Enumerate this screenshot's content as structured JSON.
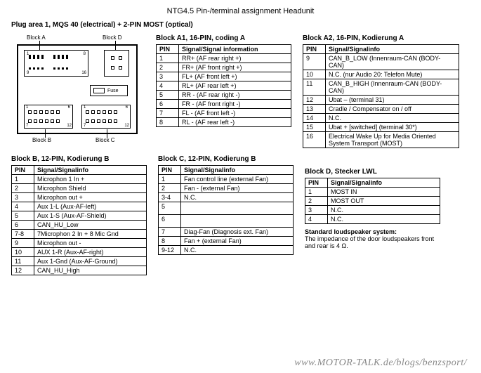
{
  "title": "NTG4.5 Pin-/terminal assignment Headunit",
  "subtitle": "Plug area 1, MQS 40 (electrical) + 2-PIN MOST (optical)",
  "diagram": {
    "labels": {
      "a": "Block A",
      "b": "Block B",
      "c": "Block C",
      "d": "Block D"
    },
    "fuse": "Fuse"
  },
  "blockA1": {
    "title": "Block A1, 16-PIN, coding A",
    "hdr_pin": "PIN",
    "hdr_sig": "Signal/Signal information",
    "rows": [
      {
        "pin": "1",
        "sig": "RR+ (AF rear right +)"
      },
      {
        "pin": "2",
        "sig": "FR+ (AF front right +)"
      },
      {
        "pin": "3",
        "sig": "FL+ (AF front left +)"
      },
      {
        "pin": "4",
        "sig": "RL+ (AF rear left +)"
      },
      {
        "pin": "5",
        "sig": "RR - (AF rear right -)"
      },
      {
        "pin": "6",
        "sig": "FR - (AF front right -)"
      },
      {
        "pin": "7",
        "sig": "FL - (AF front left -)"
      },
      {
        "pin": "8",
        "sig": "RL - (AF rear left -)"
      }
    ]
  },
  "blockA2": {
    "title": "Block A2, 16-PIN, Kodierung A",
    "hdr_pin": "PIN",
    "hdr_sig": "Signal/Signalinfo",
    "rows": [
      {
        "pin": "9",
        "sig": "CAN_B_LOW (Innenraum-CAN (BODY-CAN)"
      },
      {
        "pin": "10",
        "sig": "N.C. (nur Audio 20: Telefon Mute)"
      },
      {
        "pin": "11",
        "sig": "CAN_B_HIGH (Innenraum-CAN (BODY-CAN)"
      },
      {
        "pin": "12",
        "sig": "Ubat – (terminal 31)"
      },
      {
        "pin": "13",
        "sig": "Cradle / Compensator on / off"
      },
      {
        "pin": "14",
        "sig": "N.C."
      },
      {
        "pin": "15",
        "sig": "Ubat + [switched] (terminal 30*)"
      },
      {
        "pin": "16",
        "sig": "Electrical Wake Up for Media Oriented System Transport (MOST)"
      }
    ]
  },
  "blockB": {
    "title": "Block B, 12-PIN, Kodierung B",
    "hdr_pin": "PIN",
    "hdr_sig": "Signal/Signalinfo",
    "rows": [
      {
        "pin": "1",
        "sig": "Microphon 1 In +"
      },
      {
        "pin": "2",
        "sig": "Microphon Shield"
      },
      {
        "pin": "3",
        "sig": "Microphon out +"
      },
      {
        "pin": "4",
        "sig": "Aux 1-L (Aux-AF-left)"
      },
      {
        "pin": "5",
        "sig": "Aux 1-S (Aux-AF-Shield)"
      },
      {
        "pin": "6",
        "sig": "CAN_HU_Low"
      },
      {
        "pin": "7-8",
        "sig": "7Microphon 2 In +      8 Mic Gnd"
      },
      {
        "pin": "9",
        "sig": "Microphon out -"
      },
      {
        "pin": "10",
        "sig": "AUX 1-R (Aux-AF-right)"
      },
      {
        "pin": "11",
        "sig": "Aux 1-Gnd (Aux-AF-Ground)"
      },
      {
        "pin": "12",
        "sig": "CAN_HU_High"
      }
    ]
  },
  "blockC": {
    "title": "Block C, 12-PIN, Kodierung B",
    "hdr_pin": "PIN",
    "hdr_sig": "Signal/Signalinfo",
    "rows": [
      {
        "pin": "1",
        "sig": "Fan control line (external Fan)"
      },
      {
        "pin": "2",
        "sig": "Fan - (external Fan)"
      },
      {
        "pin": "3-4",
        "sig": "N.C."
      },
      {
        "pin": "5",
        "sig": ""
      },
      {
        "pin": "6",
        "sig": ""
      },
      {
        "pin": "7",
        "sig": "Diag-Fan (Diagnosis ext. Fan)"
      },
      {
        "pin": "8",
        "sig": "Fan + (external Fan)"
      },
      {
        "pin": "9-12",
        "sig": "N.C."
      }
    ]
  },
  "blockD": {
    "title": "Block D, Stecker LWL",
    "hdr_pin": "PIN",
    "hdr_sig": "Signal/Signalinfo",
    "rows": [
      {
        "pin": "1",
        "sig": "MOST IN"
      },
      {
        "pin": "2",
        "sig": "MOST OUT"
      },
      {
        "pin": "3",
        "sig": "N.C."
      },
      {
        "pin": "4",
        "sig": "N.C."
      }
    ]
  },
  "footer": {
    "heading": "Standard loudspeaker system:",
    "text": "The impedance of the door loudspeakers front and rear is 4 Ω."
  },
  "watermark": "www.MOTOR-TALK.de/blogs/benzsport/"
}
